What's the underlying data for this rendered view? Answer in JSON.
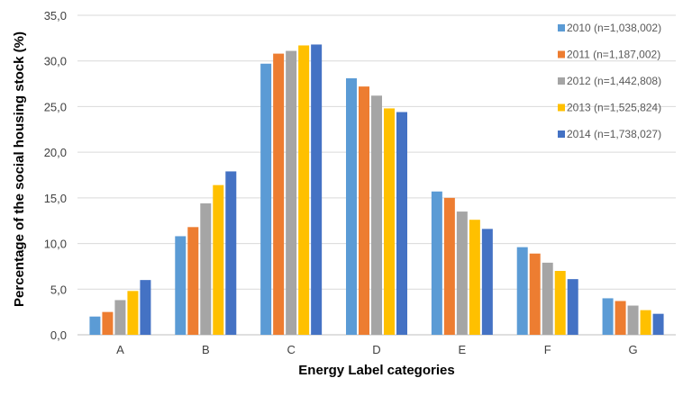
{
  "chart_data": {
    "type": "bar",
    "title": "",
    "xlabel": "Energy Label categories",
    "ylabel": "Percentage of the social housing stock (%)",
    "categories": [
      "A",
      "B",
      "C",
      "D",
      "E",
      "F",
      "G"
    ],
    "ylim": [
      0,
      35
    ],
    "yticks": [
      "0,0",
      "5,0",
      "10,0",
      "15,0",
      "20,0",
      "25,0",
      "30,0",
      "35,0"
    ],
    "grid": true,
    "legend_position": "top-right",
    "series": [
      {
        "name": "2010 (n=1,038,002)",
        "color": "#5b9bd5",
        "values": [
          2.0,
          10.8,
          29.7,
          28.1,
          15.7,
          9.6,
          4.0
        ]
      },
      {
        "name": "2011 (n=1,187,002)",
        "color": "#ed7d31",
        "values": [
          2.5,
          11.8,
          30.8,
          27.2,
          15.0,
          8.9,
          3.7
        ]
      },
      {
        "name": "2012 (n=1,442,808)",
        "color": "#a5a5a5",
        "values": [
          3.8,
          14.4,
          31.1,
          26.2,
          13.5,
          7.9,
          3.2
        ]
      },
      {
        "name": "2013 (n=1,525,824)",
        "color": "#ffc000",
        "values": [
          4.8,
          16.4,
          31.7,
          24.8,
          12.6,
          7.0,
          2.7
        ]
      },
      {
        "name": "2014 (n=1,738,027)",
        "color": "#4472c4",
        "values": [
          6.0,
          17.9,
          31.8,
          24.4,
          11.6,
          6.1,
          2.3
        ]
      }
    ]
  }
}
